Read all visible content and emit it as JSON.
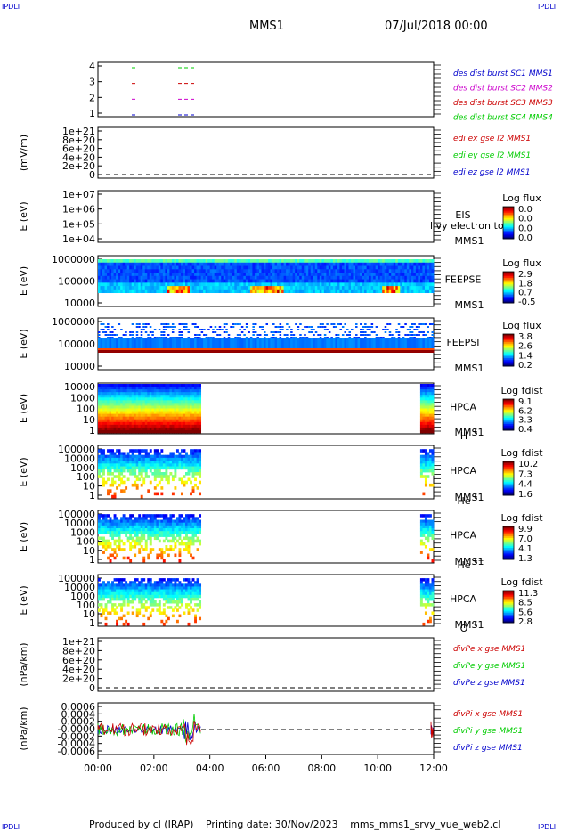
{
  "corner_marks": {
    "top_left": "IPDLI",
    "top_right": "IPDLI",
    "bottom_left": "IPDLI",
    "bottom_right": "IPDLI"
  },
  "header": {
    "title": "MMS1",
    "date": "07/Jul/2018 00:00"
  },
  "footer": {
    "producer": "Produced by cl (IRAP)",
    "printing": "Printing date: 30/Nov/2023",
    "file": "mms_mms1_srvy_vue_web2.cl"
  },
  "colors": {
    "blue": "#0000cc",
    "green": "#00cc00",
    "red": "#cc0000",
    "magenta": "#cc00cc"
  },
  "chart_data": [
    {
      "type": "line",
      "panel": "des-dist-burst",
      "yticks": [
        "4",
        "3",
        "2",
        "1"
      ],
      "legend": [
        {
          "text": "des dist burst SC1 MMS1",
          "color": "#0000cc"
        },
        {
          "text": "des dist burst SC2 MMS2",
          "color": "#cc00cc"
        },
        {
          "text": "des dist burst SC3 MMS3",
          "color": "#cc0000"
        },
        {
          "text": "des dist burst SC4 MMS4",
          "color": "#00cc00"
        }
      ]
    },
    {
      "type": "line",
      "panel": "edi-e-gse",
      "ylabel": "(mV/m)",
      "yticks": [
        "1e+21",
        "8e+20",
        "6e+20",
        "4e+20",
        "2e+20",
        "0"
      ],
      "legend": [
        {
          "text": "edi ex gse l2 MMS1",
          "color": "#cc0000"
        },
        {
          "text": "edi ey gse l2 MMS1",
          "color": "#00cc00"
        },
        {
          "text": "edi ez gse l2 MMS1",
          "color": "#0000cc"
        }
      ]
    },
    {
      "type": "heatmap",
      "panel": "eis",
      "ylabel": "E (eV)",
      "yticks": [
        "1e+07",
        "1e+06",
        "1e+05",
        "1e+04"
      ],
      "instrument": "EIS",
      "spacecraft": "MMS1",
      "overlay_text": "l vy electron to",
      "colorbar": {
        "title": "Log flux",
        "ticks": [
          "0.0",
          "0.0",
          "0.0",
          "0.0"
        ]
      }
    },
    {
      "type": "heatmap",
      "panel": "feeps-e",
      "ylabel": "E (eV)",
      "yticks": [
        "1000000",
        "100000",
        "10000"
      ],
      "instrument": "FEEPSE",
      "spacecraft": "MMS1",
      "colorbar": {
        "title": "Log flux",
        "ticks": [
          "2.9",
          "1.8",
          "0.7",
          "-0.5"
        ]
      }
    },
    {
      "type": "heatmap",
      "panel": "feeps-i",
      "ylabel": "E (eV)",
      "yticks": [
        "1000000",
        "100000",
        "10000"
      ],
      "instrument": "FEEPSI",
      "spacecraft": "MMS1",
      "colorbar": {
        "title": "Log flux",
        "ticks": [
          "3.8",
          "2.6",
          "1.4",
          "0.2"
        ]
      }
    },
    {
      "type": "heatmap",
      "panel": "hpca-h",
      "ylabel": "E (eV)",
      "yticks": [
        "10000",
        "1000",
        "100",
        "10",
        "1"
      ],
      "instrument": "HPCA",
      "spacecraft": "MMS1",
      "species": "H",
      "charge": "+",
      "colorbar": {
        "title": "Log fdist",
        "ticks": [
          "9.1",
          "6.2",
          "3.3",
          "0.4"
        ]
      }
    },
    {
      "type": "heatmap",
      "panel": "hpca-he",
      "ylabel": "E (eV)",
      "yticks": [
        "100000",
        "10000",
        "1000",
        "100",
        "10",
        "1"
      ],
      "instrument": "HPCA",
      "spacecraft": "MMS1",
      "species": "He",
      "charge": "+",
      "colorbar": {
        "title": "Log fdist",
        "ticks": [
          "10.2",
          "7.3",
          "4.4",
          "1.6"
        ]
      }
    },
    {
      "type": "heatmap",
      "panel": "hpca-he2",
      "ylabel": "E (eV)",
      "yticks": [
        "100000",
        "10000",
        "1000",
        "100",
        "10",
        "1"
      ],
      "instrument": "HPCA",
      "spacecraft": "MMS1",
      "species": "He",
      "charge": "++",
      "colorbar": {
        "title": "Log fdist",
        "ticks": [
          "9.9",
          "7.0",
          "4.1",
          "1.3"
        ]
      }
    },
    {
      "type": "heatmap",
      "panel": "hpca-o",
      "ylabel": "E (eV)",
      "yticks": [
        "100000",
        "10000",
        "1000",
        "100",
        "10",
        "1"
      ],
      "instrument": "HPCA",
      "spacecraft": "MMS1",
      "species": "O",
      "charge": "+",
      "colorbar": {
        "title": "Log fdist",
        "ticks": [
          "11.3",
          "8.5",
          "5.6",
          "2.8"
        ]
      }
    },
    {
      "type": "line",
      "panel": "divpe",
      "ylabel": "(nPa/km)",
      "yticks": [
        "1e+21",
        "8e+20",
        "6e+20",
        "4e+20",
        "2e+20",
        "0"
      ],
      "legend": [
        {
          "text": "divPe x gse MMS1",
          "color": "#cc0000"
        },
        {
          "text": "divPe y gse MMS1",
          "color": "#00cc00"
        },
        {
          "text": "divPe z gse MMS1",
          "color": "#0000cc"
        }
      ]
    },
    {
      "type": "line",
      "panel": "divpi",
      "ylabel": "(nPa/km)",
      "yticks": [
        "0.0006",
        "0.0004",
        "0.0002",
        "-0.0000",
        "-0.0002",
        "-0.0004",
        "-0.0006"
      ],
      "legend": [
        {
          "text": "divPi x gse MMS1",
          "color": "#cc0000"
        },
        {
          "text": "divPi y gse MMS1",
          "color": "#00cc00"
        },
        {
          "text": "divPi z gse MMS1",
          "color": "#0000cc"
        }
      ]
    }
  ],
  "xaxis": {
    "ticks": [
      "00:00",
      "02:00",
      "04:00",
      "06:00",
      "08:00",
      "10:00",
      "12:00"
    ]
  }
}
